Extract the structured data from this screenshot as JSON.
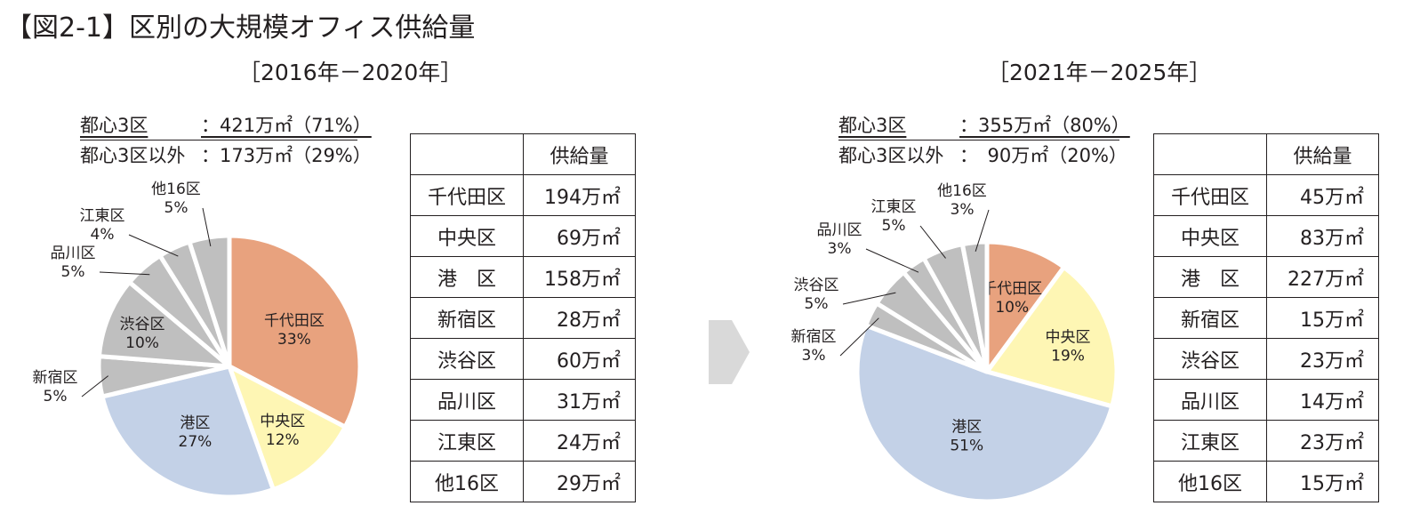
{
  "figure_title": "【図2-1】区別の大規模オフィス供給量",
  "chart_data": [
    {
      "type": "pie",
      "period_label": "［2016年－2020年］",
      "summary": [
        {
          "label": "都心3区",
          "value": "：421万㎡（71%）"
        },
        {
          "label": "都心3区以外",
          "value": "：173万㎡（29%）"
        }
      ],
      "slices": [
        {
          "name": "千代田区",
          "pct": 33,
          "pct_label": "33%",
          "color": "#e8a27e"
        },
        {
          "name": "中央区",
          "pct": 12,
          "pct_label": "12%",
          "color": "#fef6b4"
        },
        {
          "name": "港区",
          "pct": 27,
          "pct_label": "27%",
          "color": "#c3d1e7"
        },
        {
          "name": "新宿区",
          "pct": 5,
          "pct_label": "5%",
          "color": "#bfbfbf"
        },
        {
          "name": "渋谷区",
          "pct": 10,
          "pct_label": "10%",
          "color": "#bfbfbf"
        },
        {
          "name": "品川区",
          "pct": 5,
          "pct_label": "5%",
          "color": "#bfbfbf"
        },
        {
          "name": "江東区",
          "pct": 4,
          "pct_label": "4%",
          "color": "#bfbfbf"
        },
        {
          "name": "他16区",
          "pct": 5,
          "pct_label": "5%",
          "color": "#bfbfbf"
        }
      ],
      "table": {
        "header": "供給量",
        "rows": [
          {
            "ward": "千代田区",
            "value": "194万㎡"
          },
          {
            "ward": "中央区",
            "value": "69万㎡"
          },
          {
            "ward": "港　区",
            "value": "158万㎡"
          },
          {
            "ward": "新宿区",
            "value": "28万㎡"
          },
          {
            "ward": "渋谷区",
            "value": "60万㎡"
          },
          {
            "ward": "品川区",
            "value": "31万㎡"
          },
          {
            "ward": "江東区",
            "value": "24万㎡"
          },
          {
            "ward": "他16区",
            "value": "29万㎡"
          }
        ]
      }
    },
    {
      "type": "pie",
      "period_label": "［2021年－2025年］",
      "summary": [
        {
          "label": "都心3区",
          "value": "：355万㎡（80%）"
        },
        {
          "label": "都心3区以外",
          "value": "：　90万㎡（20%）"
        }
      ],
      "slices": [
        {
          "name": "千代田区",
          "pct": 10,
          "pct_label": "10%",
          "color": "#e8a27e"
        },
        {
          "name": "中央区",
          "pct": 19,
          "pct_label": "19%",
          "color": "#fef6b4"
        },
        {
          "name": "港区",
          "pct": 51,
          "pct_label": "51%",
          "color": "#c3d1e7"
        },
        {
          "name": "新宿区",
          "pct": 3,
          "pct_label": "3%",
          "color": "#bfbfbf"
        },
        {
          "name": "渋谷区",
          "pct": 5,
          "pct_label": "5%",
          "color": "#bfbfbf"
        },
        {
          "name": "品川区",
          "pct": 3,
          "pct_label": "3%",
          "color": "#bfbfbf"
        },
        {
          "name": "江東区",
          "pct": 5,
          "pct_label": "5%",
          "color": "#bfbfbf"
        },
        {
          "name": "他16区",
          "pct": 3,
          "pct_label": "3%",
          "color": "#bfbfbf"
        }
      ],
      "table": {
        "header": "供給量",
        "rows": [
          {
            "ward": "千代田区",
            "value": "45万㎡"
          },
          {
            "ward": "中央区",
            "value": "83万㎡"
          },
          {
            "ward": "港　区",
            "value": "227万㎡"
          },
          {
            "ward": "新宿区",
            "value": "15万㎡"
          },
          {
            "ward": "渋谷区",
            "value": "23万㎡"
          },
          {
            "ward": "品川区",
            "value": "14万㎡"
          },
          {
            "ward": "江東区",
            "value": "23万㎡"
          },
          {
            "ward": "他16区",
            "value": "15万㎡"
          }
        ]
      }
    }
  ]
}
